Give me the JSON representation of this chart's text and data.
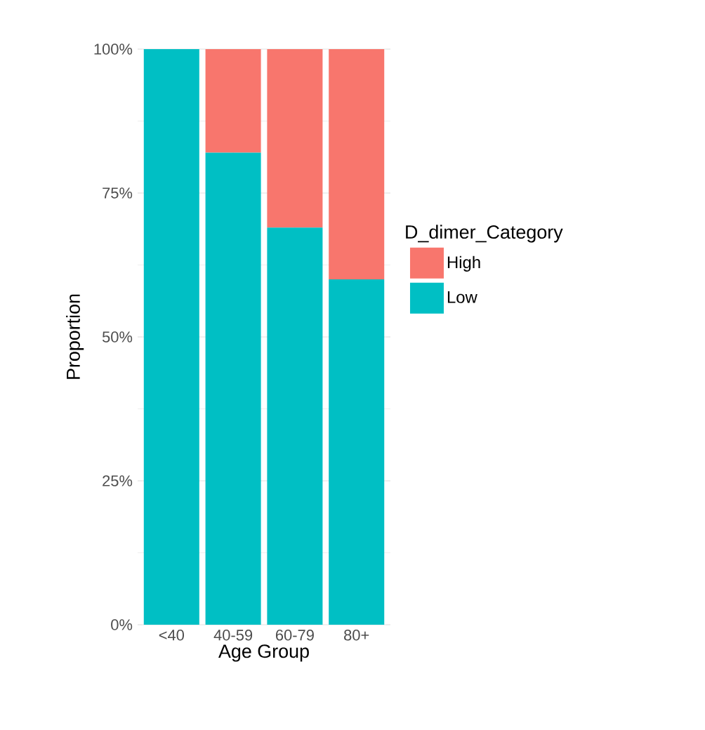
{
  "chart_data": {
    "type": "bar",
    "stacked": true,
    "xlabel": "Age Group",
    "ylabel": "Proportion",
    "legend_title": "D_dimer_Category",
    "categories": [
      "<40",
      "40-59",
      "60-79",
      "80+"
    ],
    "series": [
      {
        "name": "Low",
        "color": "#00bfc4",
        "values": [
          100,
          82,
          69,
          60
        ]
      },
      {
        "name": "High",
        "color": "#f8766d",
        "values": [
          0,
          18,
          31,
          40
        ]
      }
    ],
    "ylim": [
      0,
      100
    ],
    "yticks": [
      {
        "value": 0,
        "label": "0%"
      },
      {
        "value": 25,
        "label": "25%"
      },
      {
        "value": 50,
        "label": "50%"
      },
      {
        "value": 75,
        "label": "75%"
      },
      {
        "value": 100,
        "label": "100%"
      }
    ],
    "grid": true,
    "legend": "right"
  }
}
